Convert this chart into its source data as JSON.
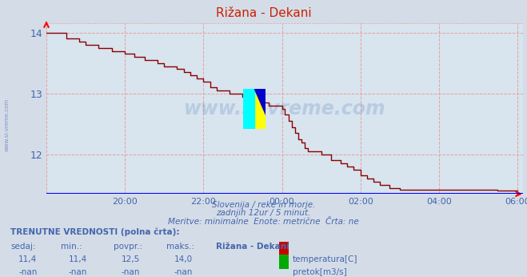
{
  "title": "Rižana - Dekani",
  "bg_color": "#d4dce8",
  "plot_bg_color": "#d8e4ee",
  "grid_color": "#e8a0a0",
  "axis_color": "#0000cc",
  "line_color": "#8b0000",
  "title_color": "#cc2200",
  "text_color": "#4466aa",
  "ylim_min": 11.35,
  "ylim_max": 14.15,
  "yticks": [
    12,
    13,
    14
  ],
  "watermark": "www.si-vreme.com",
  "subtitle1": "Slovenija / reke in morje.",
  "subtitle2": "zadnjih 12ur / 5 minut.",
  "subtitle3": "Meritve: minimalne  Enote: metrične  Črta: ne",
  "footer_bold": "TRENUTNE VREDNOSTI (polna črta):",
  "col_headers": [
    "sedaj:",
    "min.:",
    "povpr.:",
    "maks.:",
    "Rižana - Dekani"
  ],
  "row1": [
    "11,4",
    "11,4",
    "12,5",
    "14,0"
  ],
  "row2": [
    "-nan",
    "-nan",
    "-nan",
    "-nan"
  ],
  "legend1": "temperatura[C]",
  "legend2": "pretok[m3/s]",
  "legend1_color": "#cc0000",
  "legend2_color": "#00aa00",
  "xtick_positions": [
    20,
    22,
    24,
    26,
    28,
    30
  ],
  "xtick_labels": [
    "20:00",
    "22:00",
    "00:00",
    "02:00",
    "04:00",
    "06:00"
  ],
  "temp_x": [
    18.0,
    18.08,
    18.5,
    18.83,
    19.0,
    19.33,
    19.67,
    20.0,
    20.25,
    20.5,
    20.83,
    21.0,
    21.33,
    21.5,
    21.67,
    21.83,
    22.0,
    22.17,
    22.33,
    22.67,
    23.0,
    23.17,
    23.33,
    23.67,
    24.0,
    24.08,
    24.17,
    24.25,
    24.33,
    24.42,
    24.5,
    24.58,
    24.67,
    25.0,
    25.25,
    25.5,
    25.67,
    25.83,
    26.0,
    26.17,
    26.33,
    26.5,
    26.75,
    27.0,
    27.5,
    28.0,
    28.5,
    29.0,
    29.5,
    30.0
  ],
  "temp_y": [
    14.0,
    14.0,
    13.9,
    13.85,
    13.8,
    13.75,
    13.7,
    13.65,
    13.6,
    13.55,
    13.5,
    13.45,
    13.4,
    13.35,
    13.3,
    13.25,
    13.2,
    13.1,
    13.05,
    13.0,
    12.95,
    12.9,
    12.85,
    12.8,
    12.75,
    12.65,
    12.55,
    12.45,
    12.35,
    12.25,
    12.2,
    12.1,
    12.05,
    12.0,
    11.9,
    11.85,
    11.8,
    11.75,
    11.65,
    11.6,
    11.55,
    11.5,
    11.45,
    11.42,
    11.42,
    11.42,
    11.42,
    11.42,
    11.41,
    11.4
  ]
}
